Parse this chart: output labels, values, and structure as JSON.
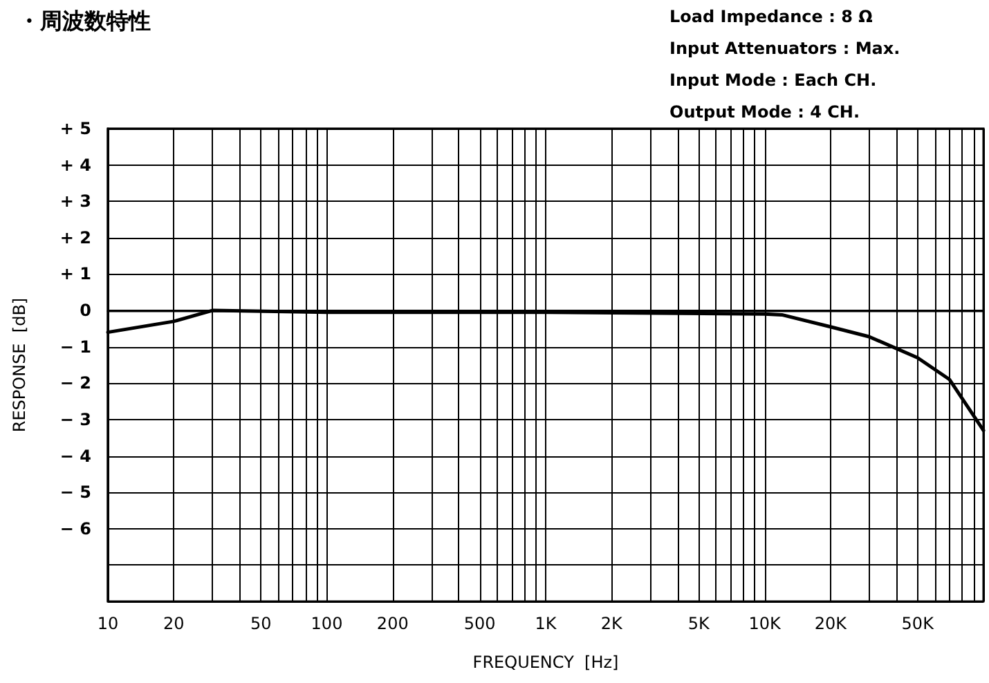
{
  "chart_data": {
    "type": "line",
    "title": "・周波数特性",
    "xlabel": "FREQUENCY  [Hz]",
    "ylabel": "RESPONSE  [dB]",
    "annotations": [
      "Load Impedance : 8 Ω",
      "Input Attenuators : Max.",
      "Input Mode : Each CH.",
      "Output Mode : 4 CH."
    ],
    "log": "x",
    "grid": true,
    "marker": "none",
    "line_style": "solid",
    "xlim": [
      10,
      100000
    ],
    "ylim": [
      -8,
      5
    ],
    "xticks": [
      10,
      20,
      {
        "value": 30,
        "label": null
      },
      {
        "value": 40,
        "label": null
      },
      50,
      {
        "value": 60,
        "label": null
      },
      {
        "value": 70,
        "label": null
      },
      {
        "value": 80,
        "label": null
      },
      {
        "value": 90,
        "label": null
      },
      100,
      200,
      {
        "value": 300,
        "label": null
      },
      {
        "value": 400,
        "label": null
      },
      500,
      {
        "value": 600,
        "label": null
      },
      {
        "value": 700,
        "label": null
      },
      {
        "value": 800,
        "label": null
      },
      {
        "value": 900,
        "label": null
      },
      {
        "value": 1000,
        "label": "1K"
      },
      {
        "value": 2000,
        "label": "2K"
      },
      {
        "value": 3000,
        "label": null
      },
      {
        "value": 4000,
        "label": null
      },
      {
        "value": 5000,
        "label": "5K"
      },
      {
        "value": 6000,
        "label": null
      },
      {
        "value": 7000,
        "label": null
      },
      {
        "value": 8000,
        "label": null
      },
      {
        "value": 9000,
        "label": null
      },
      {
        "value": 10000,
        "label": "10K"
      },
      {
        "value": 20000,
        "label": "20K"
      },
      {
        "value": 30000,
        "label": null
      },
      {
        "value": 40000,
        "label": null
      },
      {
        "value": 50000,
        "label": "50K"
      },
      {
        "value": 60000,
        "label": null
      },
      {
        "value": 70000,
        "label": null
      },
      {
        "value": 80000,
        "label": null
      },
      {
        "value": 90000,
        "label": null
      },
      {
        "value": 100000,
        "label": null
      }
    ],
    "yticks": [
      {
        "value": 5,
        "label": "+ 5"
      },
      {
        "value": 4,
        "label": "+ 4"
      },
      {
        "value": 3,
        "label": "+ 3"
      },
      {
        "value": 2,
        "label": "+ 2"
      },
      {
        "value": 1,
        "label": "+ 1"
      },
      0,
      {
        "value": -1,
        "label": "− 1"
      },
      {
        "value": -2,
        "label": "− 2"
      },
      {
        "value": -3,
        "label": "− 3"
      },
      {
        "value": -4,
        "label": "− 4"
      },
      {
        "value": -5,
        "label": "− 5"
      },
      {
        "value": -6,
        "label": "− 6"
      },
      {
        "value": -7,
        "label": null
      },
      {
        "value": -8,
        "label": null
      }
    ],
    "series": [
      {
        "color": "#000000",
        "x": [
          10,
          20,
          30,
          100,
          1000,
          10000,
          12000,
          20000,
          30000,
          50000,
          70000,
          100000
        ],
        "values": [
          -0.6,
          -0.3,
          0,
          -0.05,
          -0.05,
          -0.1,
          -0.12,
          -0.45,
          -0.72,
          -1.3,
          -1.9,
          -3.3
        ]
      }
    ]
  }
}
